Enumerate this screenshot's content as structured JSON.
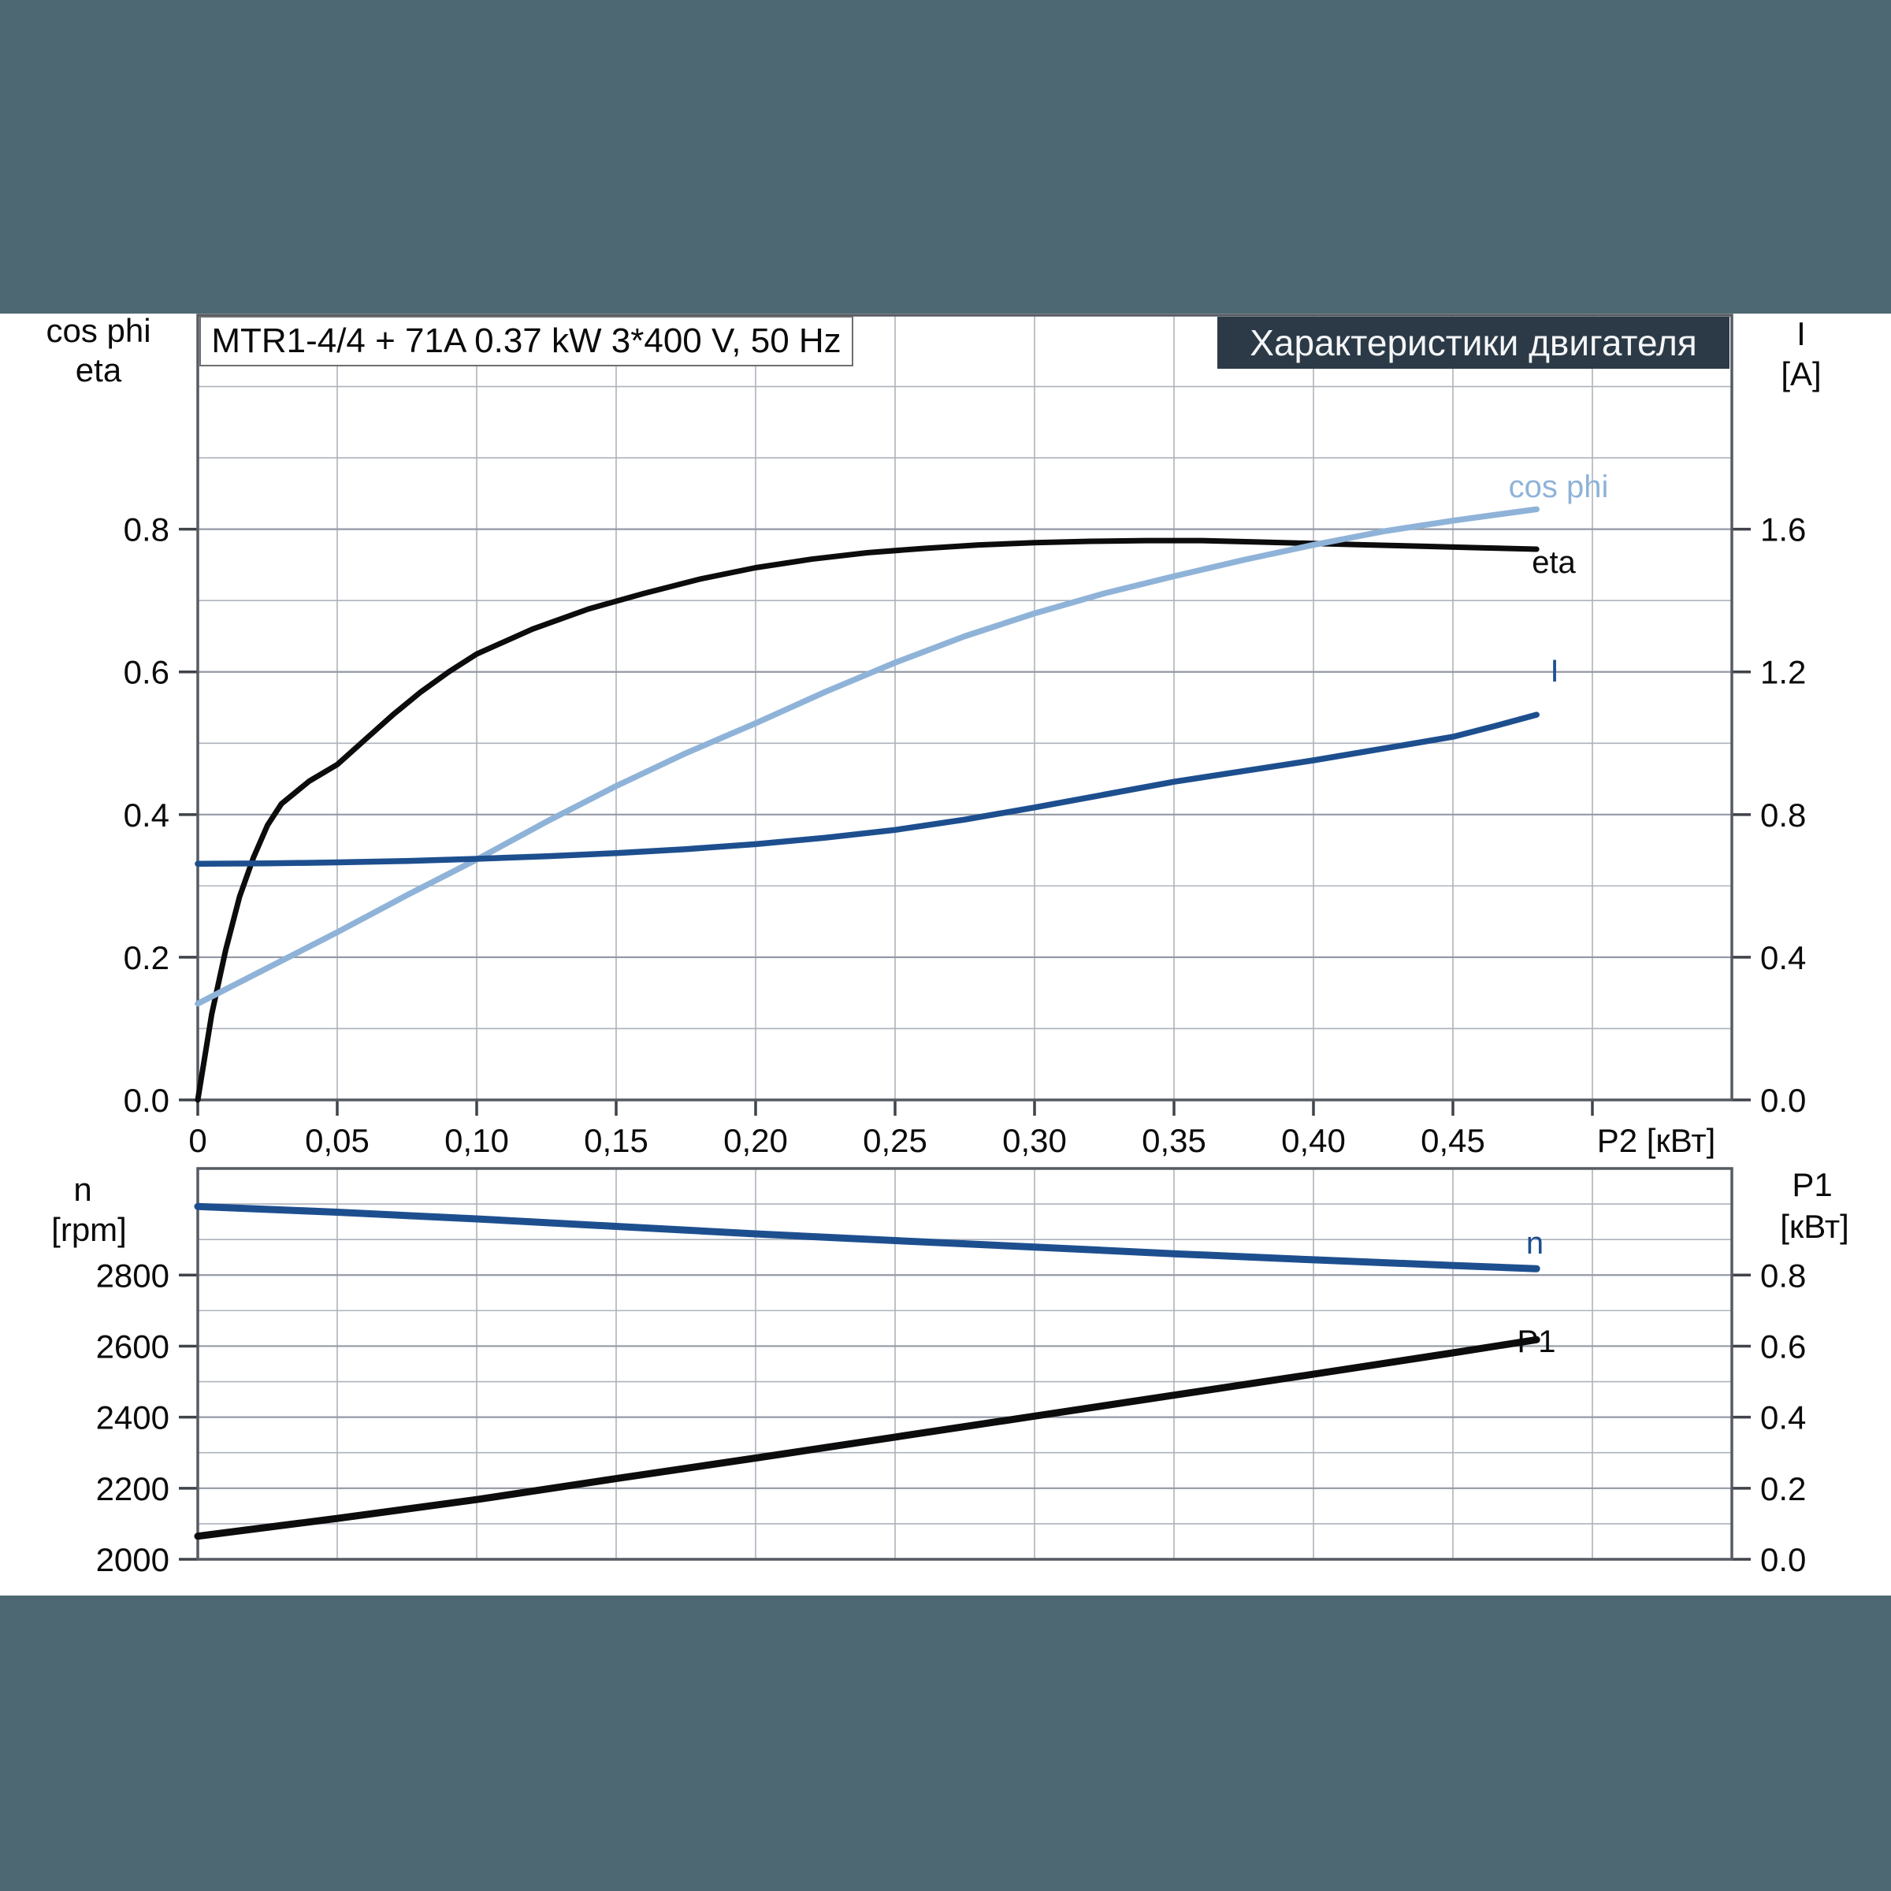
{
  "window": {
    "background_color": "#4d6872",
    "content_background": "#ffffff"
  },
  "header": {
    "title": "Характеристики двигателя",
    "background_color": "#2c3a47",
    "text_color": "#f4f6f8"
  },
  "title_box": {
    "text": "MTR1-4/4 + 71A   0.37 kW   3*400 V, 50 Hz"
  },
  "axis_labels": {
    "top_left_1": "cos phi",
    "top_left_2": "eta",
    "top_right_1": "I",
    "top_right_2": "[A]",
    "bottom_left_1": "n",
    "bottom_left_2": "[rpm]",
    "bottom_right_1": "P1",
    "bottom_right_2": "[кВт]",
    "x_axis": "P2 [кВт]"
  },
  "curve_labels": {
    "cos_phi": "cos phi",
    "eta": "eta",
    "current": "I",
    "speed": "n",
    "power_in": "P1"
  },
  "colors": {
    "eta_curve": "#0c0c0d",
    "cos_phi_curve": "#8fb3d8",
    "current_curve": "#1d4f8f",
    "speed_curve": "#1d4f8f",
    "power_in_curve": "#0c0c0d",
    "grid": "#adb2bb",
    "frame": "#565b63"
  },
  "chart_data": [
    {
      "type": "line",
      "title": "MTR1-4/4 + 71A   0.37 kW   3*400 V, 50 Hz",
      "xlabel": "P2 [кВт]",
      "xlim": [
        0,
        0.55
      ],
      "ylim_left": [
        0,
        1.1
      ],
      "ylim_right": [
        0,
        2.2
      ],
      "grid_step_x": 0.05,
      "grid_step_y": 0.1,
      "x_tick_values": [
        0,
        0.05,
        0.1,
        0.15,
        0.2,
        0.25,
        0.3,
        0.35,
        0.4,
        0.45,
        0.5
      ],
      "x_ticks": [
        "0",
        "0,05",
        "0,10",
        "0,15",
        "0,20",
        "0,25",
        "0,30",
        "0,35",
        "0,40",
        "0,45",
        ""
      ],
      "y_ticks_left": {
        "values": [
          0.0,
          0.2,
          0.4,
          0.6,
          0.8
        ],
        "labels": [
          "0.0",
          "0.2",
          "0.4",
          "0.6",
          "0.8"
        ]
      },
      "y_ticks_right": {
        "values": [
          0.0,
          0.4,
          0.8,
          1.2,
          1.6
        ],
        "labels": [
          "0.0",
          "0.4",
          "0.8",
          "1.2",
          "1.6"
        ]
      },
      "legend_position": "inline-labels",
      "grid": true,
      "series": [
        {
          "name": "eta",
          "axis": "left",
          "color": "#0c0c0d",
          "width": 7,
          "points": [
            [
              0,
              0
            ],
            [
              0.005,
              0.12
            ],
            [
              0.01,
              0.21
            ],
            [
              0.015,
              0.285
            ],
            [
              0.02,
              0.34
            ],
            [
              0.025,
              0.385
            ],
            [
              0.03,
              0.415
            ],
            [
              0.04,
              0.447
            ],
            [
              0.05,
              0.47
            ],
            [
              0.06,
              0.505
            ],
            [
              0.07,
              0.54
            ],
            [
              0.08,
              0.572
            ],
            [
              0.09,
              0.6
            ],
            [
              0.1,
              0.625
            ],
            [
              0.12,
              0.66
            ],
            [
              0.14,
              0.688
            ],
            [
              0.16,
              0.71
            ],
            [
              0.18,
              0.73
            ],
            [
              0.2,
              0.746
            ],
            [
              0.22,
              0.758
            ],
            [
              0.24,
              0.767
            ],
            [
              0.26,
              0.773
            ],
            [
              0.28,
              0.778
            ],
            [
              0.3,
              0.781
            ],
            [
              0.32,
              0.783
            ],
            [
              0.34,
              0.784
            ],
            [
              0.36,
              0.784
            ],
            [
              0.38,
              0.782
            ],
            [
              0.4,
              0.78
            ],
            [
              0.42,
              0.778
            ],
            [
              0.44,
              0.776
            ],
            [
              0.46,
              0.774
            ],
            [
              0.48,
              0.772
            ]
          ]
        },
        {
          "name": "cos phi",
          "axis": "left",
          "color": "#8fb3d8",
          "width": 7.5,
          "points": [
            [
              0,
              0.135
            ],
            [
              0.025,
              0.185
            ],
            [
              0.05,
              0.235
            ],
            [
              0.075,
              0.287
            ],
            [
              0.1,
              0.337
            ],
            [
              0.125,
              0.39
            ],
            [
              0.15,
              0.44
            ],
            [
              0.175,
              0.486
            ],
            [
              0.2,
              0.528
            ],
            [
              0.225,
              0.572
            ],
            [
              0.25,
              0.613
            ],
            [
              0.275,
              0.65
            ],
            [
              0.3,
              0.682
            ],
            [
              0.325,
              0.71
            ],
            [
              0.35,
              0.734
            ],
            [
              0.375,
              0.757
            ],
            [
              0.4,
              0.778
            ],
            [
              0.425,
              0.797
            ],
            [
              0.45,
              0.812
            ],
            [
              0.465,
              0.82
            ],
            [
              0.48,
              0.828
            ]
          ]
        },
        {
          "name": "I",
          "axis": "right",
          "color": "#1d4f8f",
          "width": 7.5,
          "points": [
            [
              0,
              0.662
            ],
            [
              0.025,
              0.663
            ],
            [
              0.05,
              0.666
            ],
            [
              0.075,
              0.67
            ],
            [
              0.1,
              0.676
            ],
            [
              0.125,
              0.683
            ],
            [
              0.15,
              0.692
            ],
            [
              0.175,
              0.703
            ],
            [
              0.2,
              0.717
            ],
            [
              0.225,
              0.735
            ],
            [
              0.25,
              0.757
            ],
            [
              0.275,
              0.786
            ],
            [
              0.3,
              0.82
            ],
            [
              0.325,
              0.856
            ],
            [
              0.35,
              0.892
            ],
            [
              0.375,
              0.922
            ],
            [
              0.4,
              0.952
            ],
            [
              0.425,
              0.985
            ],
            [
              0.45,
              1.018
            ],
            [
              0.465,
              1.048
            ],
            [
              0.48,
              1.08
            ]
          ]
        }
      ]
    },
    {
      "type": "line",
      "xlabel": "",
      "xlim": [
        0,
        0.55
      ],
      "ylim_left": [
        2000,
        3100
      ],
      "ylim_right": [
        0,
        1.1
      ],
      "grid_step_x": 0.05,
      "grid_step_y": 100,
      "y_ticks_left": {
        "values": [
          2000,
          2200,
          2400,
          2600,
          2800
        ],
        "labels": [
          "2000",
          "2200",
          "2400",
          "2600",
          "2800"
        ]
      },
      "y_ticks_right": {
        "values": [
          0.0,
          0.2,
          0.4,
          0.6,
          0.8
        ],
        "labels": [
          "0.0",
          "0.2",
          "0.4",
          "0.6",
          "0.8"
        ]
      },
      "legend_position": "inline-labels",
      "grid": true,
      "series": [
        {
          "name": "n",
          "axis": "left",
          "color": "#1d4f8f",
          "width": 9,
          "points": [
            [
              0,
              2993
            ],
            [
              0.05,
              2977
            ],
            [
              0.1,
              2958
            ],
            [
              0.15,
              2937
            ],
            [
              0.2,
              2916
            ],
            [
              0.25,
              2897
            ],
            [
              0.3,
              2879
            ],
            [
              0.35,
              2860
            ],
            [
              0.4,
              2843
            ],
            [
              0.45,
              2827
            ],
            [
              0.48,
              2818
            ]
          ]
        },
        {
          "name": "P1",
          "axis": "right",
          "color": "#0c0c0d",
          "width": 9,
          "points": [
            [
              0,
              0.065
            ],
            [
              0.05,
              0.115
            ],
            [
              0.1,
              0.168
            ],
            [
              0.15,
              0.227
            ],
            [
              0.2,
              0.285
            ],
            [
              0.25,
              0.344
            ],
            [
              0.3,
              0.403
            ],
            [
              0.35,
              0.462
            ],
            [
              0.4,
              0.521
            ],
            [
              0.45,
              0.581
            ],
            [
              0.48,
              0.618
            ]
          ]
        }
      ]
    }
  ]
}
